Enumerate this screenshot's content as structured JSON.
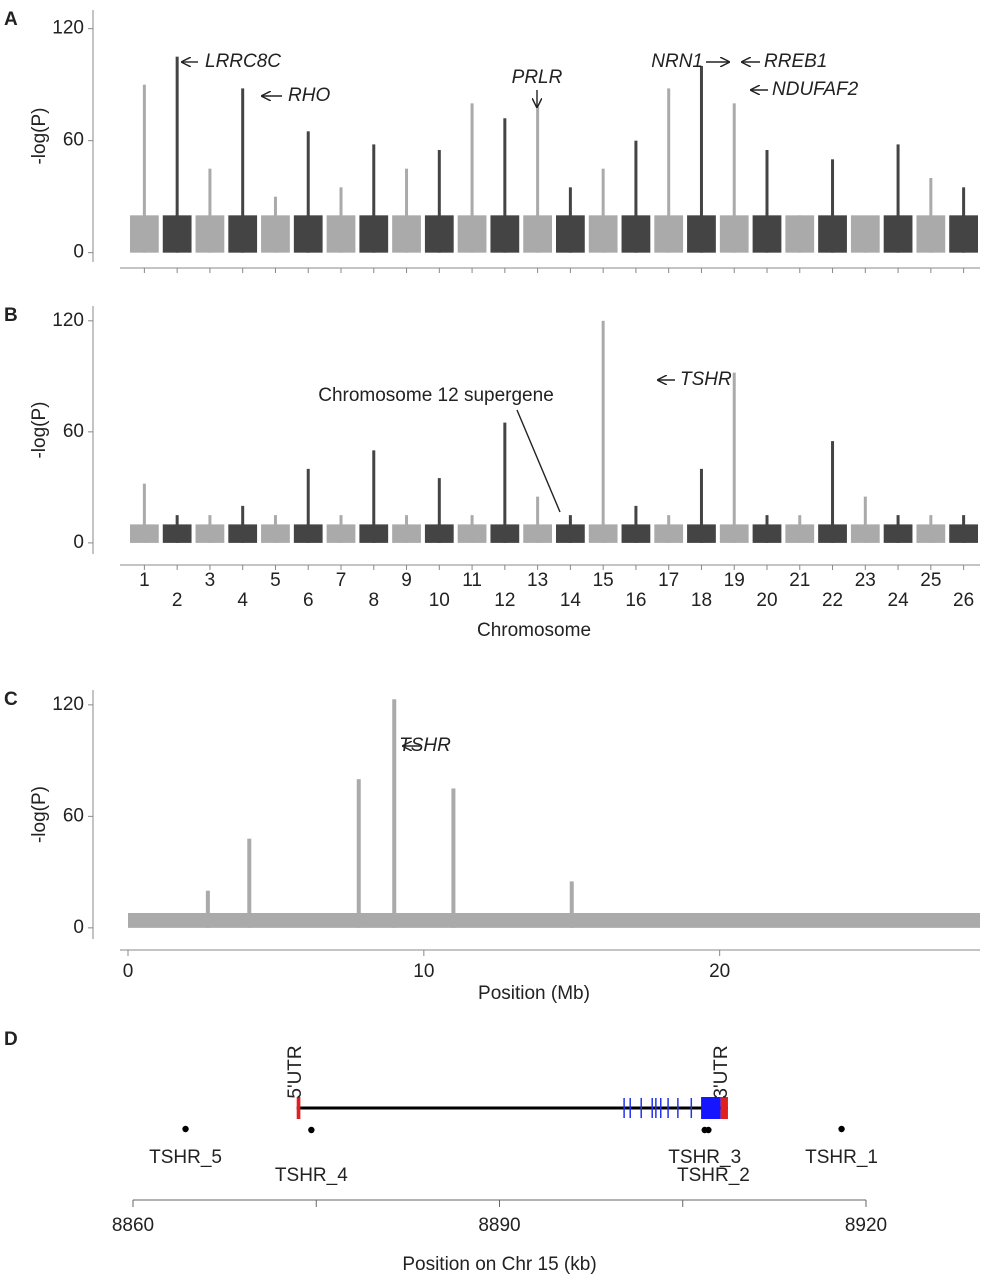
{
  "chart_data": [
    {
      "type": "manhattan",
      "panel": "A",
      "ylabel": "-log(P)",
      "ylim": [
        -5,
        130
      ],
      "yticks": [
        0,
        60,
        120
      ],
      "baseline": 20,
      "colors": [
        "#aaaaaa",
        "#444444"
      ],
      "values": [
        90,
        105,
        45,
        88,
        30,
        65,
        35,
        58,
        45,
        55,
        80,
        72,
        78,
        35,
        45,
        60,
        88,
        100,
        80,
        55,
        20,
        50,
        18,
        58,
        40,
        35
      ],
      "annotations": [
        "LRRC8C",
        "RHO",
        "PRLR",
        "NRN1",
        "RREB1",
        "NDUFAF2"
      ]
    },
    {
      "type": "manhattan",
      "panel": "B",
      "ylabel": "-log(P)",
      "xlabel": "Chromosome",
      "ylim": [
        -6,
        128
      ],
      "yticks": [
        0,
        60,
        120
      ],
      "baseline": 10,
      "colors": [
        "#aaaaaa",
        "#444444"
      ],
      "categories": [
        "1",
        "2",
        "3",
        "4",
        "5",
        "6",
        "7",
        "8",
        "9",
        "10",
        "11",
        "12",
        "13",
        "14",
        "15",
        "16",
        "17",
        "18",
        "19",
        "20",
        "21",
        "22",
        "23",
        "24",
        "25",
        "26"
      ],
      "values": [
        32,
        15,
        15,
        20,
        15,
        40,
        15,
        50,
        15,
        35,
        15,
        65,
        25,
        15,
        120,
        20,
        15,
        40,
        92,
        15,
        15,
        55,
        25,
        15,
        15,
        15
      ],
      "annotations": [
        "Chromosome 12 supergene",
        "TSHR"
      ]
    },
    {
      "type": "spikes",
      "panel": "C",
      "ylabel": "-log(P)",
      "xlabel": "Position (Mb)",
      "xlim": [
        0,
        28.8
      ],
      "xticks": [
        0,
        10,
        20
      ],
      "ylim": [
        -6,
        128
      ],
      "yticks": [
        0,
        60,
        120
      ],
      "baseline": 8,
      "color": "#aaaaaa",
      "x": [
        2.7,
        4.1,
        7.8,
        9.0,
        11.0,
        15.0
      ],
      "values": [
        20,
        48,
        80,
        123,
        75,
        25
      ],
      "annotations": [
        "TSHR"
      ]
    },
    {
      "type": "gene",
      "panel": "D",
      "xlabel": "Position on Chr 15 (kb)",
      "xlim": [
        8860,
        8920
      ],
      "xticks": [
        8860,
        8890,
        8920
      ],
      "minor_xticks": [
        8875,
        8905
      ],
      "gene": {
        "start": 8873.4,
        "end": 8908.7,
        "utr5_end": 8873.7,
        "cds_block": [
          8906.5,
          8908.1
        ],
        "exons": [
          8900.2,
          8900.7,
          8901.6,
          8902.5,
          8902.8,
          8903.2,
          8903.8,
          8904.6,
          8905.7
        ],
        "utr5_label": "5'UTR",
        "utr3_label": "3'UTR"
      },
      "markers": [
        {
          "name": "TSHR_5",
          "x": 8864.3
        },
        {
          "name": "TSHR_4",
          "x": 8874.6
        },
        {
          "name": "TSHR_3",
          "x": 8906.8
        },
        {
          "name": "TSHR_2",
          "x": 8907.1
        },
        {
          "name": "TSHR_1",
          "x": 8918.0
        }
      ]
    }
  ]
}
